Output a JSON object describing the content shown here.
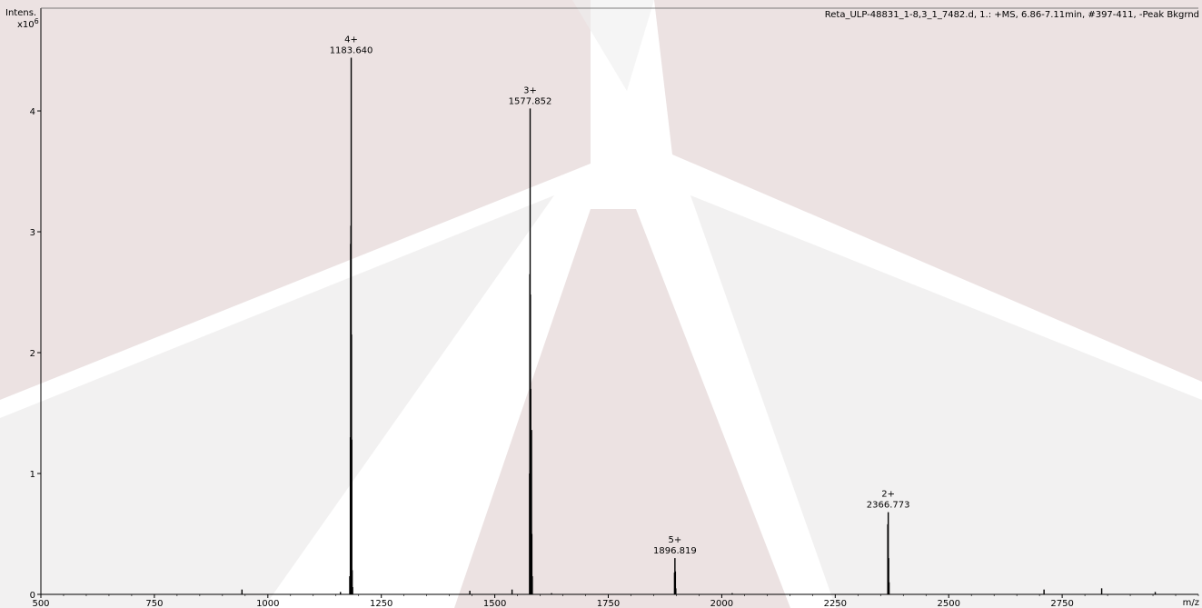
{
  "chart_data": {
    "type": "line",
    "title": "Reta_ULP-48831_1-8,3_1_7482.d, 1.: +MS, 6.86-7.11min, #397-411, -Peak Bkgrnd",
    "ylabel": "Intens.",
    "y_multiplier": "x10",
    "y_multiplier_exp": "6",
    "xlabel": "m/z",
    "xlim": [
      500,
      3050
    ],
    "ylim": [
      0,
      4.85
    ],
    "x_ticks": [
      500,
      750,
      1000,
      1250,
      1500,
      1750,
      2000,
      2250,
      2500,
      2750
    ],
    "y_ticks": [
      0,
      1,
      2,
      3,
      4
    ],
    "grid": false,
    "series": [
      {
        "color": "#000000",
        "peaks": [
          {
            "x": 943,
            "y": 0.04
          },
          {
            "x": 1160,
            "y": 0.02
          },
          {
            "x": 1180.5,
            "y": 0.15
          },
          {
            "x": 1181.8,
            "y": 1.3
          },
          {
            "x": 1182.4,
            "y": 2.9
          },
          {
            "x": 1183.0,
            "y": 3.05
          },
          {
            "x": 1183.64,
            "y": 4.44
          },
          {
            "x": 1184.3,
            "y": 2.15
          },
          {
            "x": 1184.9,
            "y": 1.28
          },
          {
            "x": 1185.8,
            "y": 0.2
          },
          {
            "x": 1186.8,
            "y": 0.06
          },
          {
            "x": 1445,
            "y": 0.03
          },
          {
            "x": 1538,
            "y": 0.04
          },
          {
            "x": 1576.6,
            "y": 1.0
          },
          {
            "x": 1577.2,
            "y": 2.65
          },
          {
            "x": 1577.852,
            "y": 4.02
          },
          {
            "x": 1578.5,
            "y": 2.48
          },
          {
            "x": 1579.2,
            "y": 1.7
          },
          {
            "x": 1580.0,
            "y": 1.0
          },
          {
            "x": 1580.8,
            "y": 1.36
          },
          {
            "x": 1581.6,
            "y": 0.5
          },
          {
            "x": 1582.6,
            "y": 0.15
          },
          {
            "x": 1625,
            "y": 0.01
          },
          {
            "x": 1895.9,
            "y": 0.18
          },
          {
            "x": 1896.819,
            "y": 0.3
          },
          {
            "x": 1897.8,
            "y": 0.19
          },
          {
            "x": 1898.8,
            "y": 0.05
          },
          {
            "x": 2023,
            "y": 0.01
          },
          {
            "x": 2365.8,
            "y": 0.58
          },
          {
            "x": 2366.773,
            "y": 0.68
          },
          {
            "x": 2367.7,
            "y": 0.3
          },
          {
            "x": 2368.6,
            "y": 0.1
          },
          {
            "x": 2710,
            "y": 0.04
          },
          {
            "x": 2837,
            "y": 0.05
          },
          {
            "x": 2955,
            "y": 0.02
          }
        ]
      }
    ],
    "annotations": [
      {
        "x": 1183.64,
        "y": 4.44,
        "charge": "4+",
        "mz": "1183.640"
      },
      {
        "x": 1577.852,
        "y": 4.02,
        "charge": "3+",
        "mz": "1577.852"
      },
      {
        "x": 1896.819,
        "y": 0.3,
        "charge": "5+",
        "mz": "1896.819"
      },
      {
        "x": 2366.773,
        "y": 0.68,
        "charge": "2+",
        "mz": "2366.773"
      }
    ]
  }
}
